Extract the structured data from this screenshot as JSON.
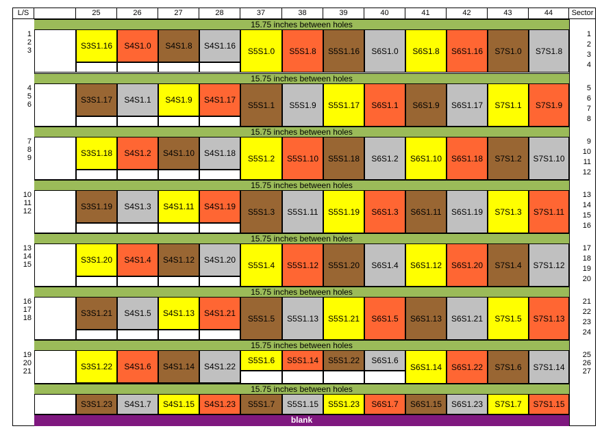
{
  "header": {
    "left_label": "L/S",
    "right_label": "Sector",
    "columns": [
      "25",
      "26",
      "27",
      "28",
      "37",
      "38",
      "39",
      "40",
      "41",
      "42",
      "43",
      "44"
    ]
  },
  "colors": {
    "yellow": "#ffff00",
    "orange": "#ff6633",
    "brown": "#996633",
    "gray": "#c0c0c0",
    "green": "#9bbb59",
    "purple": "#7f187f"
  },
  "separator_text": "15.75 inches between holes",
  "footer_text": "blank",
  "groups": [
    {
      "ls": [
        "1",
        "2",
        "3"
      ],
      "sector": [
        "1",
        "2",
        "3",
        "4"
      ],
      "left": [
        {
          "t": "S3S1.16",
          "c": "yellow"
        },
        {
          "t": "S4S1.0",
          "c": "orange"
        },
        {
          "t": "S4S1.8",
          "c": "brown"
        },
        {
          "t": "S4S1.16",
          "c": "gray"
        }
      ],
      "right": [
        {
          "t": "S5S1.0",
          "c": "yellow"
        },
        {
          "t": "S5S1.8",
          "c": "orange"
        },
        {
          "t": "S5S1.16",
          "c": "brown"
        },
        {
          "t": "S6S1.0",
          "c": "gray"
        },
        {
          "t": "S6S1.8",
          "c": "yellow"
        },
        {
          "t": "S6S1.16",
          "c": "orange"
        },
        {
          "t": "S7S1.0",
          "c": "brown"
        },
        {
          "t": "S7S1.8",
          "c": "gray"
        }
      ]
    },
    {
      "ls": [
        "4",
        "5",
        "6"
      ],
      "sector": [
        "5",
        "6",
        "7",
        "8"
      ],
      "left": [
        {
          "t": "S3S1.17",
          "c": "brown"
        },
        {
          "t": "S4S1.1",
          "c": "gray"
        },
        {
          "t": "S4S1.9",
          "c": "yellow"
        },
        {
          "t": "S4S1.17",
          "c": "orange"
        }
      ],
      "right": [
        {
          "t": "S5S1.1",
          "c": "brown"
        },
        {
          "t": "S5S1.9",
          "c": "gray"
        },
        {
          "t": "S5S1.17",
          "c": "yellow"
        },
        {
          "t": "S6S1.1",
          "c": "orange"
        },
        {
          "t": "S6S1.9",
          "c": "brown"
        },
        {
          "t": "S6S1.17",
          "c": "gray"
        },
        {
          "t": "S7S1.1",
          "c": "yellow"
        },
        {
          "t": "S7S1.9",
          "c": "orange"
        }
      ]
    },
    {
      "ls": [
        "7",
        "8",
        "9"
      ],
      "sector": [
        "9",
        "10",
        "11",
        "12"
      ],
      "left": [
        {
          "t": "S3S1.18",
          "c": "yellow"
        },
        {
          "t": "S4S1.2",
          "c": "orange"
        },
        {
          "t": "S4S1.10",
          "c": "brown"
        },
        {
          "t": "S4S1.18",
          "c": "gray"
        }
      ],
      "right": [
        {
          "t": "S5S1.2",
          "c": "yellow"
        },
        {
          "t": "S5S1.10",
          "c": "orange"
        },
        {
          "t": "S5S1.18",
          "c": "brown"
        },
        {
          "t": "S6S1.2",
          "c": "gray"
        },
        {
          "t": "S6S1.10",
          "c": "yellow"
        },
        {
          "t": "S6S1.18",
          "c": "orange"
        },
        {
          "t": "S7S1.2",
          "c": "brown"
        },
        {
          "t": "S7S1.10",
          "c": "gray"
        }
      ]
    },
    {
      "ls": [
        "10",
        "11",
        "12"
      ],
      "sector": [
        "13",
        "14",
        "15",
        "16"
      ],
      "left": [
        {
          "t": "S3S1.19",
          "c": "brown"
        },
        {
          "t": "S4S1.3",
          "c": "gray"
        },
        {
          "t": "S4S1.11",
          "c": "yellow"
        },
        {
          "t": "S4S1.19",
          "c": "orange"
        }
      ],
      "right": [
        {
          "t": "S5S1.3",
          "c": "brown"
        },
        {
          "t": "S5S1.11",
          "c": "gray"
        },
        {
          "t": "S5S1.19",
          "c": "yellow"
        },
        {
          "t": "S6S1.3",
          "c": "orange"
        },
        {
          "t": "S6S1.11",
          "c": "brown"
        },
        {
          "t": "S6S1.19",
          "c": "gray"
        },
        {
          "t": "S7S1.3",
          "c": "yellow"
        },
        {
          "t": "S7S1.11",
          "c": "orange"
        }
      ]
    },
    {
      "ls": [
        "13",
        "14",
        "15"
      ],
      "sector": [
        "17",
        "18",
        "19",
        "20"
      ],
      "left": [
        {
          "t": "S3S1.20",
          "c": "yellow"
        },
        {
          "t": "S4S1.4",
          "c": "orange"
        },
        {
          "t": "S4S1.12",
          "c": "brown"
        },
        {
          "t": "S4S1.20",
          "c": "gray"
        }
      ],
      "right": [
        {
          "t": "S5S1.4",
          "c": "yellow"
        },
        {
          "t": "S5S1.12",
          "c": "orange"
        },
        {
          "t": "S5S1.20",
          "c": "brown"
        },
        {
          "t": "S6S1.4",
          "c": "gray"
        },
        {
          "t": "S6S1.12",
          "c": "yellow"
        },
        {
          "t": "S6S1.20",
          "c": "orange"
        },
        {
          "t": "S7S1.4",
          "c": "brown"
        },
        {
          "t": "S7S1.12",
          "c": "gray"
        }
      ]
    },
    {
      "ls": [
        "16",
        "17",
        "18"
      ],
      "sector": [
        "21",
        "22",
        "23",
        "24"
      ],
      "left": [
        {
          "t": "S3S1.21",
          "c": "brown"
        },
        {
          "t": "S4S1.5",
          "c": "gray"
        },
        {
          "t": "S4S1.13",
          "c": "yellow"
        },
        {
          "t": "S4S1.21",
          "c": "orange"
        }
      ],
      "right": [
        {
          "t": "S5S1.5",
          "c": "brown"
        },
        {
          "t": "S5S1.13",
          "c": "gray"
        },
        {
          "t": "S5S1.21",
          "c": "yellow"
        },
        {
          "t": "S6S1.5",
          "c": "orange"
        },
        {
          "t": "S6S1.13",
          "c": "brown"
        },
        {
          "t": "S6S1.21",
          "c": "gray"
        },
        {
          "t": "S7S1.5",
          "c": "yellow"
        },
        {
          "t": "S7S1.13",
          "c": "orange"
        }
      ]
    },
    {
      "ls": [
        "19",
        "20",
        "21"
      ],
      "sector": [
        "25",
        "26",
        "27"
      ],
      "left": [
        {
          "t": "S3S1.22",
          "c": "yellow"
        },
        {
          "t": "S4S1.6",
          "c": "orange"
        },
        {
          "t": "S4S1.14",
          "c": "brown"
        },
        {
          "t": "S4S1.22",
          "c": "gray"
        }
      ],
      "right": [
        {
          "t": "S5S1.6",
          "c": "yellow"
        },
        {
          "t": "S5S1.14",
          "c": "orange"
        },
        {
          "t": "S5S1.22",
          "c": "brown"
        },
        {
          "t": "S6S1.6",
          "c": "gray"
        },
        {
          "t": "S6S1.14",
          "c": "yellow"
        },
        {
          "t": "S6S1.22",
          "c": "orange"
        },
        {
          "t": "S7S1.6",
          "c": "brown"
        },
        {
          "t": "S7S1.14",
          "c": "gray"
        }
      ]
    },
    {
      "ls": [],
      "sector": [],
      "left": [
        {
          "t": "S3S1.23",
          "c": "brown"
        },
        {
          "t": "S4S1.7",
          "c": "gray"
        },
        {
          "t": "S4S1.15",
          "c": "yellow"
        },
        {
          "t": "S4S1.23",
          "c": "orange"
        }
      ],
      "right": [
        {
          "t": "S5S1.7",
          "c": "brown"
        },
        {
          "t": "S5S1.15",
          "c": "gray"
        },
        {
          "t": "S5S1.23",
          "c": "yellow"
        },
        {
          "t": "S6S1.7",
          "c": "orange"
        },
        {
          "t": "S6S1.15",
          "c": "brown"
        },
        {
          "t": "S6S1.23",
          "c": "gray"
        },
        {
          "t": "S7S1.7",
          "c": "yellow"
        },
        {
          "t": "S7S1.15",
          "c": "orange"
        }
      ]
    }
  ]
}
